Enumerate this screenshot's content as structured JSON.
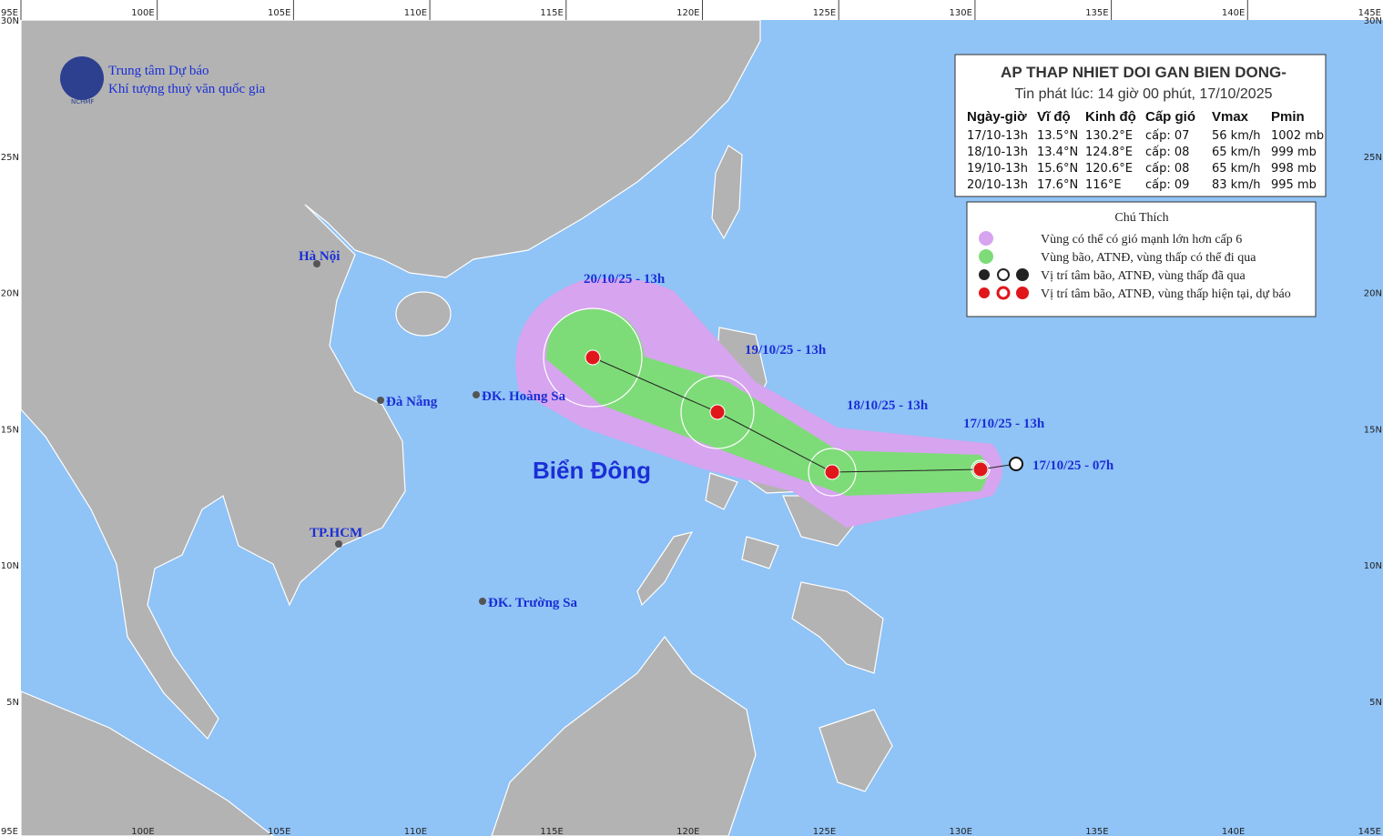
{
  "header": {
    "org_line1": "Trung tâm Dự báo",
    "org_line2": "Khí tượng thuỷ văn quốc gia",
    "logo_text": "NCHMF"
  },
  "axis": {
    "lon_labels": [
      "95E",
      "100E",
      "105E",
      "110E",
      "115E",
      "120E",
      "125E",
      "130E",
      "135E",
      "140E",
      "145E"
    ],
    "lat_labels": [
      "30N",
      "25N",
      "20N",
      "15N",
      "10N",
      "5N"
    ]
  },
  "info": {
    "title": "AP THAP NHIET DOI GAN BIEN DONG-",
    "issued": "Tin phát lúc: 14 giờ 00 phút, 17/10/2025",
    "columns": [
      "Ngày-giờ",
      "Vĩ độ",
      "Kinh độ",
      "Cấp gió",
      "Vmax",
      "Pmin"
    ],
    "rows": [
      [
        "17/10-13h",
        "13.5°N",
        "130.2°E",
        "cấp: 07",
        "56 km/h",
        "1002 mb"
      ],
      [
        "18/10-13h",
        "13.4°N",
        "124.8°E",
        "cấp: 08",
        "65 km/h",
        "999 mb"
      ],
      [
        "19/10-13h",
        "15.6°N",
        "120.6°E",
        "cấp: 08",
        "65 km/h",
        "998 mb"
      ],
      [
        "20/10-13h",
        "17.6°N",
        "116°E",
        "cấp: 09",
        "83 km/h",
        "995 mb"
      ]
    ]
  },
  "legend": {
    "title": "Chú Thích",
    "items": [
      "Vùng có thể có gió mạnh lớn hơn cấp 6",
      "Vùng bão, ATNĐ, vùng thấp có thể đi qua",
      "Vị trí tâm bão, ATNĐ, vùng thấp đã qua",
      "Vị trí tâm bão, ATNĐ, vùng thấp hiện tại, dự báo"
    ]
  },
  "map_labels": {
    "sea": "Biển Đông",
    "hanoi": "Hà Nội",
    "danang": "Đà Nẵng",
    "hcm": "TP.HCM",
    "hoangsa": "ĐK. Hoàng Sa",
    "truongsa": "ĐK. Trường Sa",
    "track": [
      "17/10/25 - 07h",
      "17/10/25 - 13h",
      "18/10/25 - 13h",
      "19/10/25 - 13h",
      "20/10/25 - 13h"
    ]
  }
}
